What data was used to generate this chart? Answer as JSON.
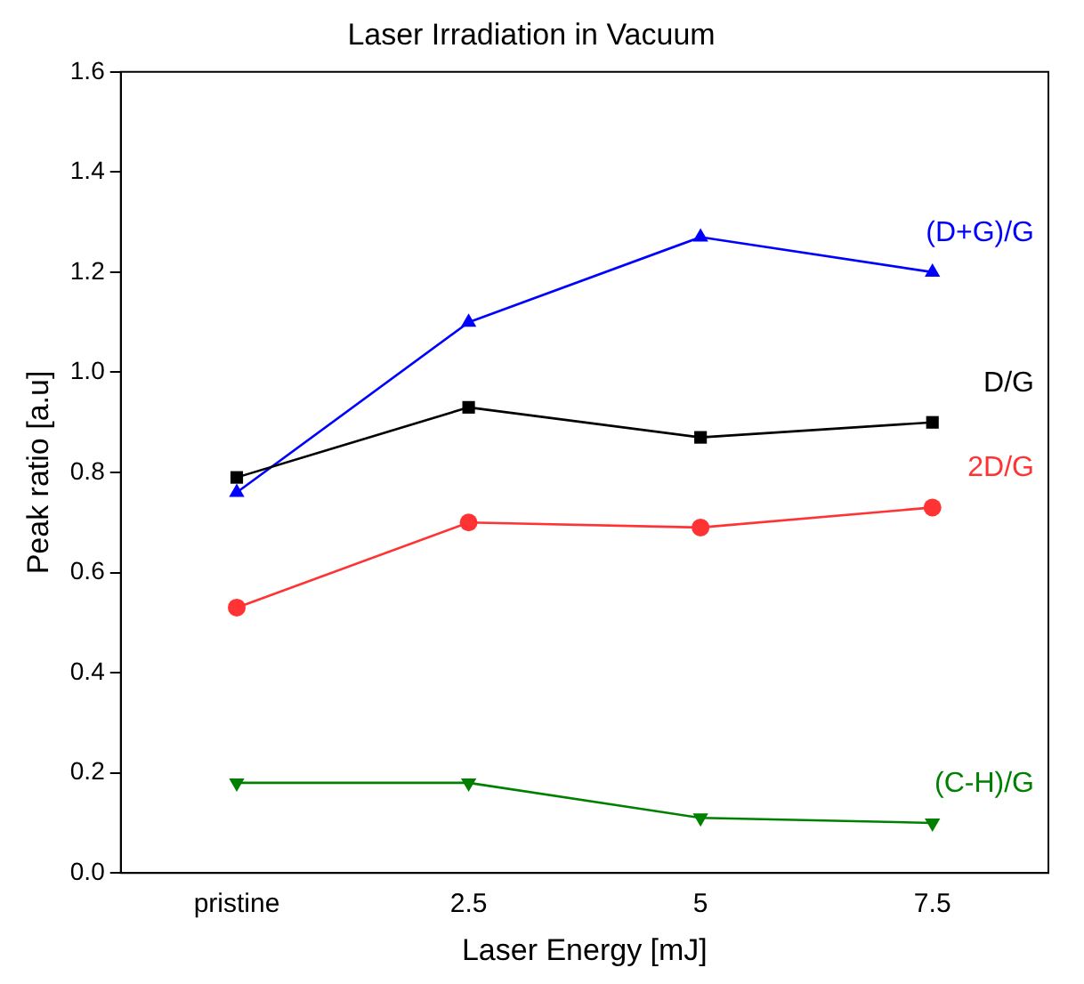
{
  "chart_data": {
    "type": "line",
    "title": "Laser Irradiation in Vacuum",
    "xlabel": "Laser Energy [mJ]",
    "ylabel": "Peak ratio [a.u]",
    "categories": [
      "pristine",
      "2.5",
      "5",
      "7.5"
    ],
    "series": [
      {
        "name": "D/G",
        "color": "#000000",
        "marker": "square",
        "values": [
          0.79,
          0.93,
          0.87,
          0.9
        ]
      },
      {
        "name": "(D+G)/G",
        "color": "#0000ff",
        "marker": "triangle",
        "values": [
          0.76,
          1.1,
          1.27,
          1.2
        ]
      },
      {
        "name": "2D/G",
        "color": "#ff3333",
        "marker": "circle",
        "values": [
          0.53,
          0.7,
          0.69,
          0.73
        ]
      },
      {
        "name": "(C-H)/G",
        "color": "#008000",
        "marker": "triangle-down",
        "values": [
          0.18,
          0.18,
          0.11,
          0.1
        ]
      }
    ],
    "ylim": [
      0,
      1.6
    ],
    "yticks": [
      {
        "value": 0,
        "label": "0.0"
      },
      0.2,
      0.4,
      0.6,
      0.8,
      {
        "value": 1,
        "label": "1.0"
      },
      1.2,
      1.4,
      1.6
    ],
    "grid": false,
    "legend": false,
    "line_style": "solid"
  }
}
